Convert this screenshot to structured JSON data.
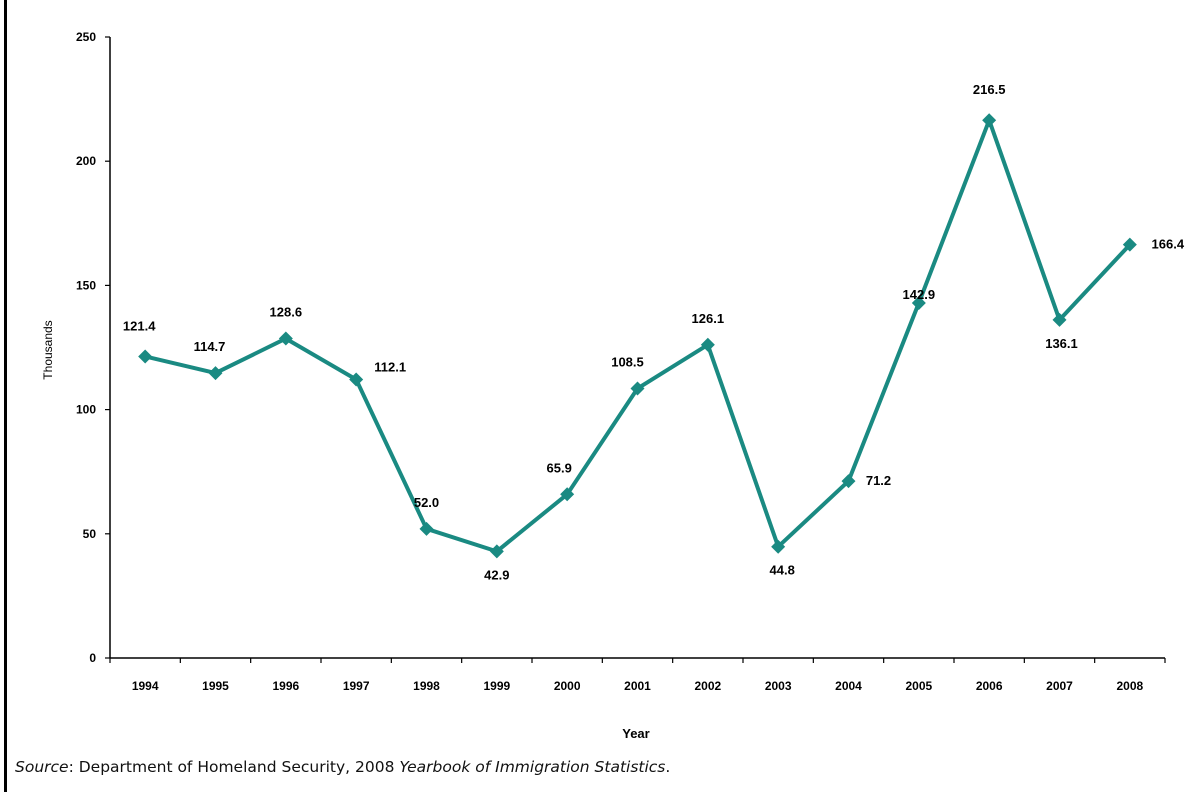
{
  "chart_data": {
    "type": "line",
    "x": [
      "1994",
      "1995",
      "1996",
      "1997",
      "1998",
      "1999",
      "2000",
      "2001",
      "2002",
      "2003",
      "2004",
      "2005",
      "2006",
      "2007",
      "2008"
    ],
    "series": [
      {
        "values": [
          121.4,
          114.7,
          128.6,
          112.1,
          52.0,
          42.9,
          65.9,
          108.5,
          126.1,
          44.8,
          71.2,
          142.9,
          216.5,
          136.1,
          166.4
        ],
        "labels": [
          "121.4",
          "114.7",
          "128.6",
          "112.1",
          "52.0",
          "42.9",
          "65.9",
          "108.5",
          "126.1",
          "44.8",
          "71.2",
          "142.9",
          "216.5",
          "136.1",
          "166.4"
        ],
        "color": "#1a8a82"
      }
    ],
    "xlabel": "Year",
    "ylabel": "Thousands",
    "ylim": [
      0,
      250
    ],
    "yticks": [
      0,
      50,
      100,
      150,
      200,
      250
    ],
    "grid": false,
    "legend": "none"
  },
  "source": {
    "prefix": "Source",
    "text1": ": Department of Homeland Security, 2008 ",
    "title": "Yearbook of Immigration Statistics",
    "suffix": "."
  }
}
